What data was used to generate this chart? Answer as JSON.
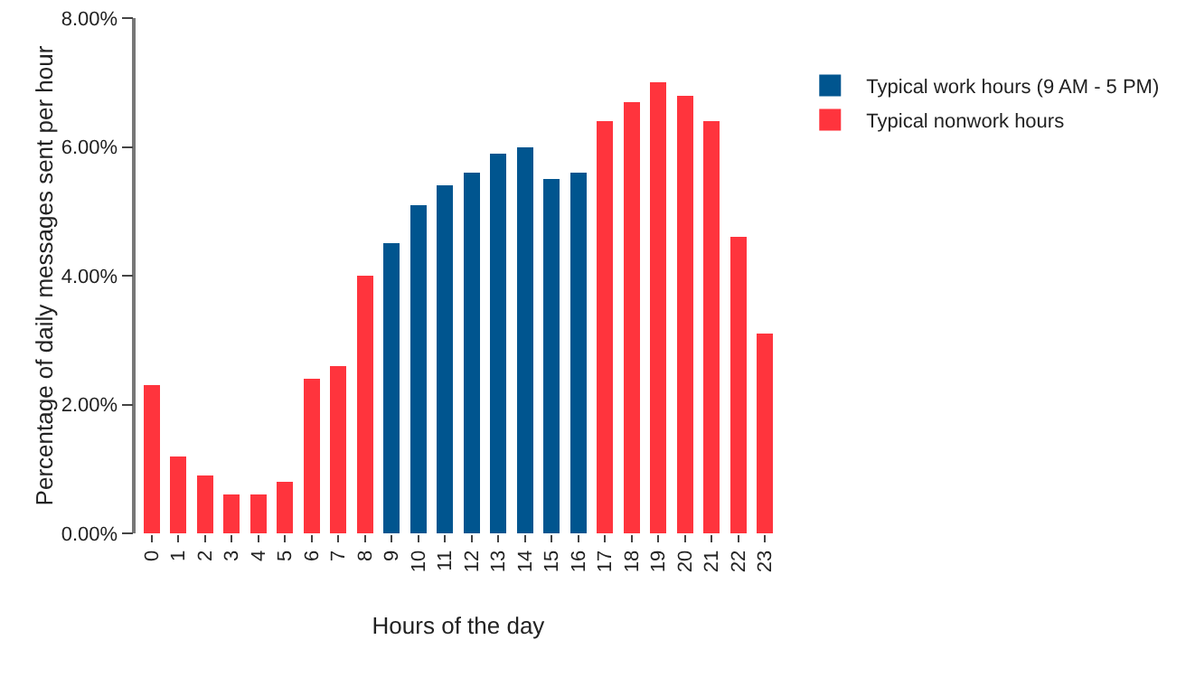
{
  "chart_data": {
    "type": "bar",
    "stacked": true,
    "xlabel": "Hours of the day",
    "ylabel": "Percentage of daily messages sent per hour",
    "categories": [
      "0",
      "1",
      "2",
      "3",
      "4",
      "5",
      "6",
      "7",
      "8",
      "9",
      "10",
      "11",
      "12",
      "13",
      "14",
      "15",
      "16",
      "17",
      "18",
      "19",
      "20",
      "21",
      "22",
      "23"
    ],
    "series": [
      {
        "name": "Typical work hours (9 AM - 5 PM)",
        "color": "#00558f",
        "values": [
          null,
          null,
          null,
          null,
          null,
          null,
          null,
          null,
          null,
          4.5,
          5.1,
          5.4,
          5.6,
          5.9,
          6.0,
          5.5,
          5.6,
          null,
          null,
          null,
          null,
          null,
          null,
          null
        ]
      },
      {
        "name": "Typical nonwork hours",
        "color": "#ff343d",
        "values": [
          2.3,
          1.2,
          0.9,
          0.6,
          0.6,
          0.8,
          2.4,
          2.6,
          4.0,
          null,
          null,
          null,
          null,
          null,
          null,
          null,
          null,
          6.4,
          6.7,
          7.0,
          6.8,
          6.4,
          4.6,
          3.1
        ]
      }
    ],
    "ylim": [
      0,
      8
    ],
    "yticks": [
      {
        "value": 0,
        "label": "0.00%"
      },
      {
        "value": 2,
        "label": "2.00%"
      },
      {
        "value": 4,
        "label": "4.00%"
      },
      {
        "value": 6,
        "label": "6.00%"
      },
      {
        "value": 8,
        "label": "8.00%"
      }
    ],
    "grid": false,
    "legend": "top right"
  }
}
